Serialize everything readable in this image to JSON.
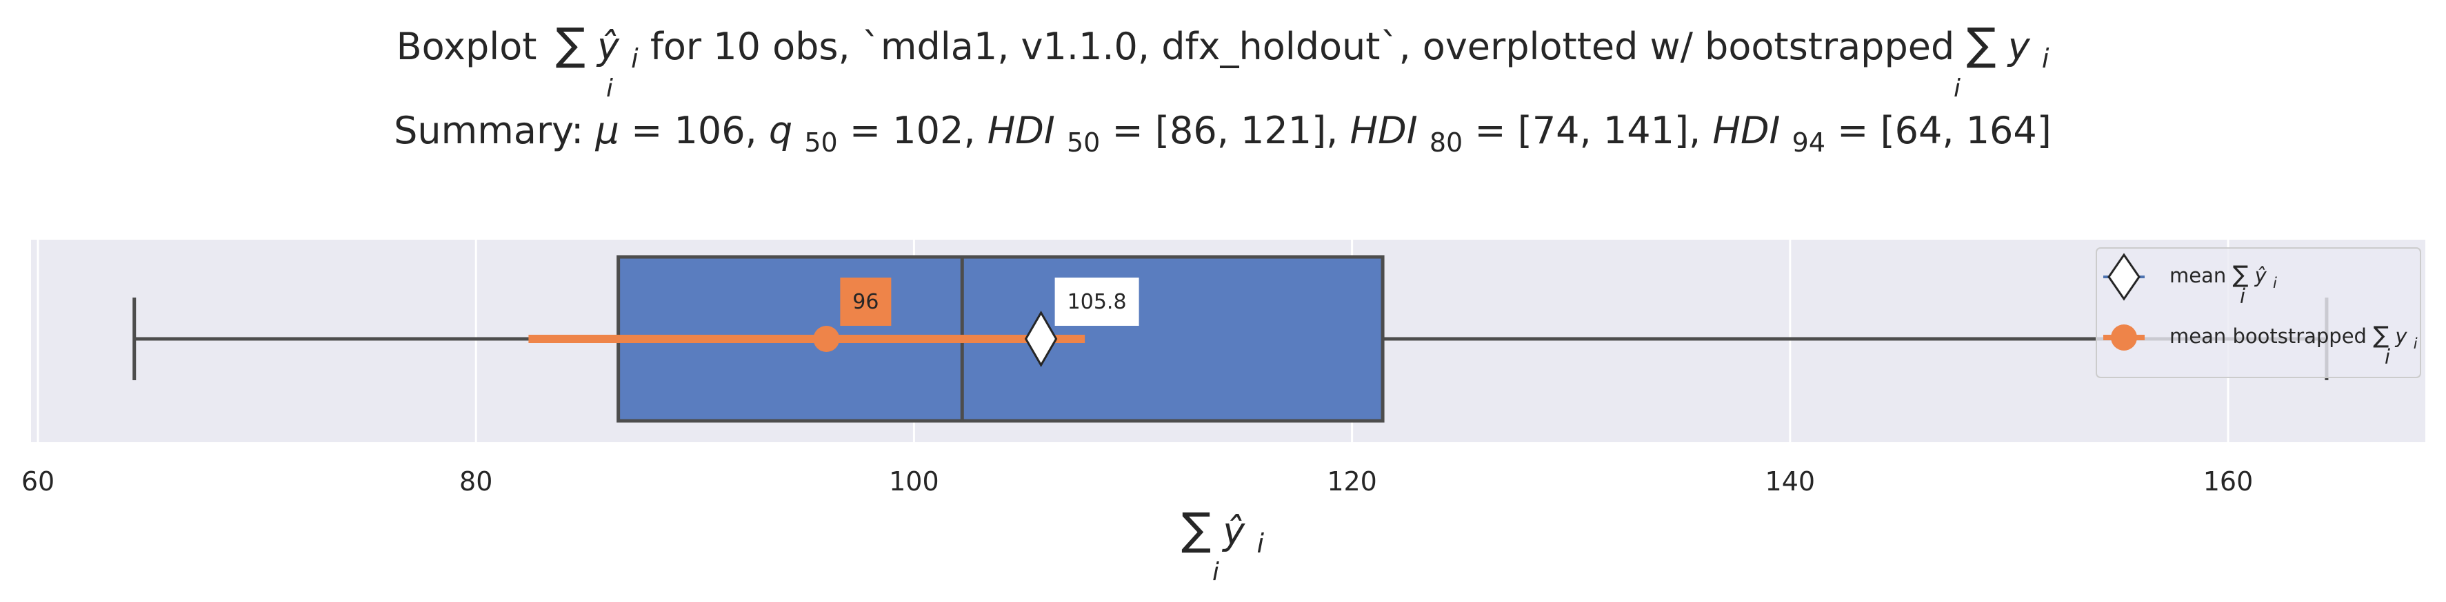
{
  "chart_data": {
    "type": "boxplot",
    "title": {
      "line1_prefix": "Boxplot",
      "line1_sum_symbol": "∑",
      "line1_sum_index": "i",
      "line1_sum_var": "ŷ",
      "line1_sum_var_sub": "i",
      "line1_middle": " for 10 obs, `mdla1, v1.1.0, dfx_holdout`, overplotted w/ bootstrapped ",
      "line1_sum2_symbol": "∑",
      "line1_sum2_index": "i",
      "line1_sum2_var": "y",
      "line1_sum2_var_sub": "i",
      "line2_prefix": "Summary: ",
      "line2_mu": "μ",
      "line2_mu_value": " = 106, ",
      "line2_q": "q",
      "line2_q_sub": "50",
      "line2_q_value": " = 102, ",
      "line2_hdi50": "HDI",
      "line2_hdi50_sub": "50",
      "line2_hdi50_value": " = [86, 121], ",
      "line2_hdi80": "HDI",
      "line2_hdi80_sub": "80",
      "line2_hdi80_value": " = [74, 141], ",
      "line2_hdi94": "HDI",
      "line2_hdi94_sub": "94",
      "line2_hdi94_value": " = [64, 164]"
    },
    "xlabel": {
      "sum_symbol": "∑",
      "sum_index": "i",
      "var": "ŷ",
      "var_sub": "i"
    },
    "xlim": [
      59.8,
      169.2
    ],
    "xticks": [
      60,
      80,
      100,
      120,
      140,
      160
    ],
    "xtick_labels": [
      "60",
      "80",
      "100",
      "120",
      "140",
      "160"
    ],
    "grid": true,
    "box": {
      "whisker_low": 64.4,
      "q1": 86.5,
      "median": 102.2,
      "q3": 121.4,
      "whisker_high": 164.5,
      "color": "#5a7dbf"
    },
    "mean_marker": {
      "value": 105.8,
      "label": "105.8"
    },
    "bootstrap": {
      "mean": 96,
      "label": "96",
      "interval_low": 82.4,
      "interval_high": 107.8,
      "color": "#ee8449"
    },
    "legend": {
      "placement": "top-right",
      "entries": [
        {
          "kind": "diamond",
          "text_prefix": "mean ",
          "sum_symbol": "∑",
          "sum_index": "i",
          "var": "ŷ",
          "var_sub": "i"
        },
        {
          "kind": "dot",
          "text_prefix": "mean bootstrapped ",
          "sum_symbol": "∑",
          "sum_index": "i",
          "var": "y",
          "var_sub": "i"
        }
      ]
    },
    "colors": {
      "background": "#eaeaf2",
      "grid": "#ffffff",
      "axis_text": "#262626",
      "box_edge": "#4d4d4d"
    }
  }
}
